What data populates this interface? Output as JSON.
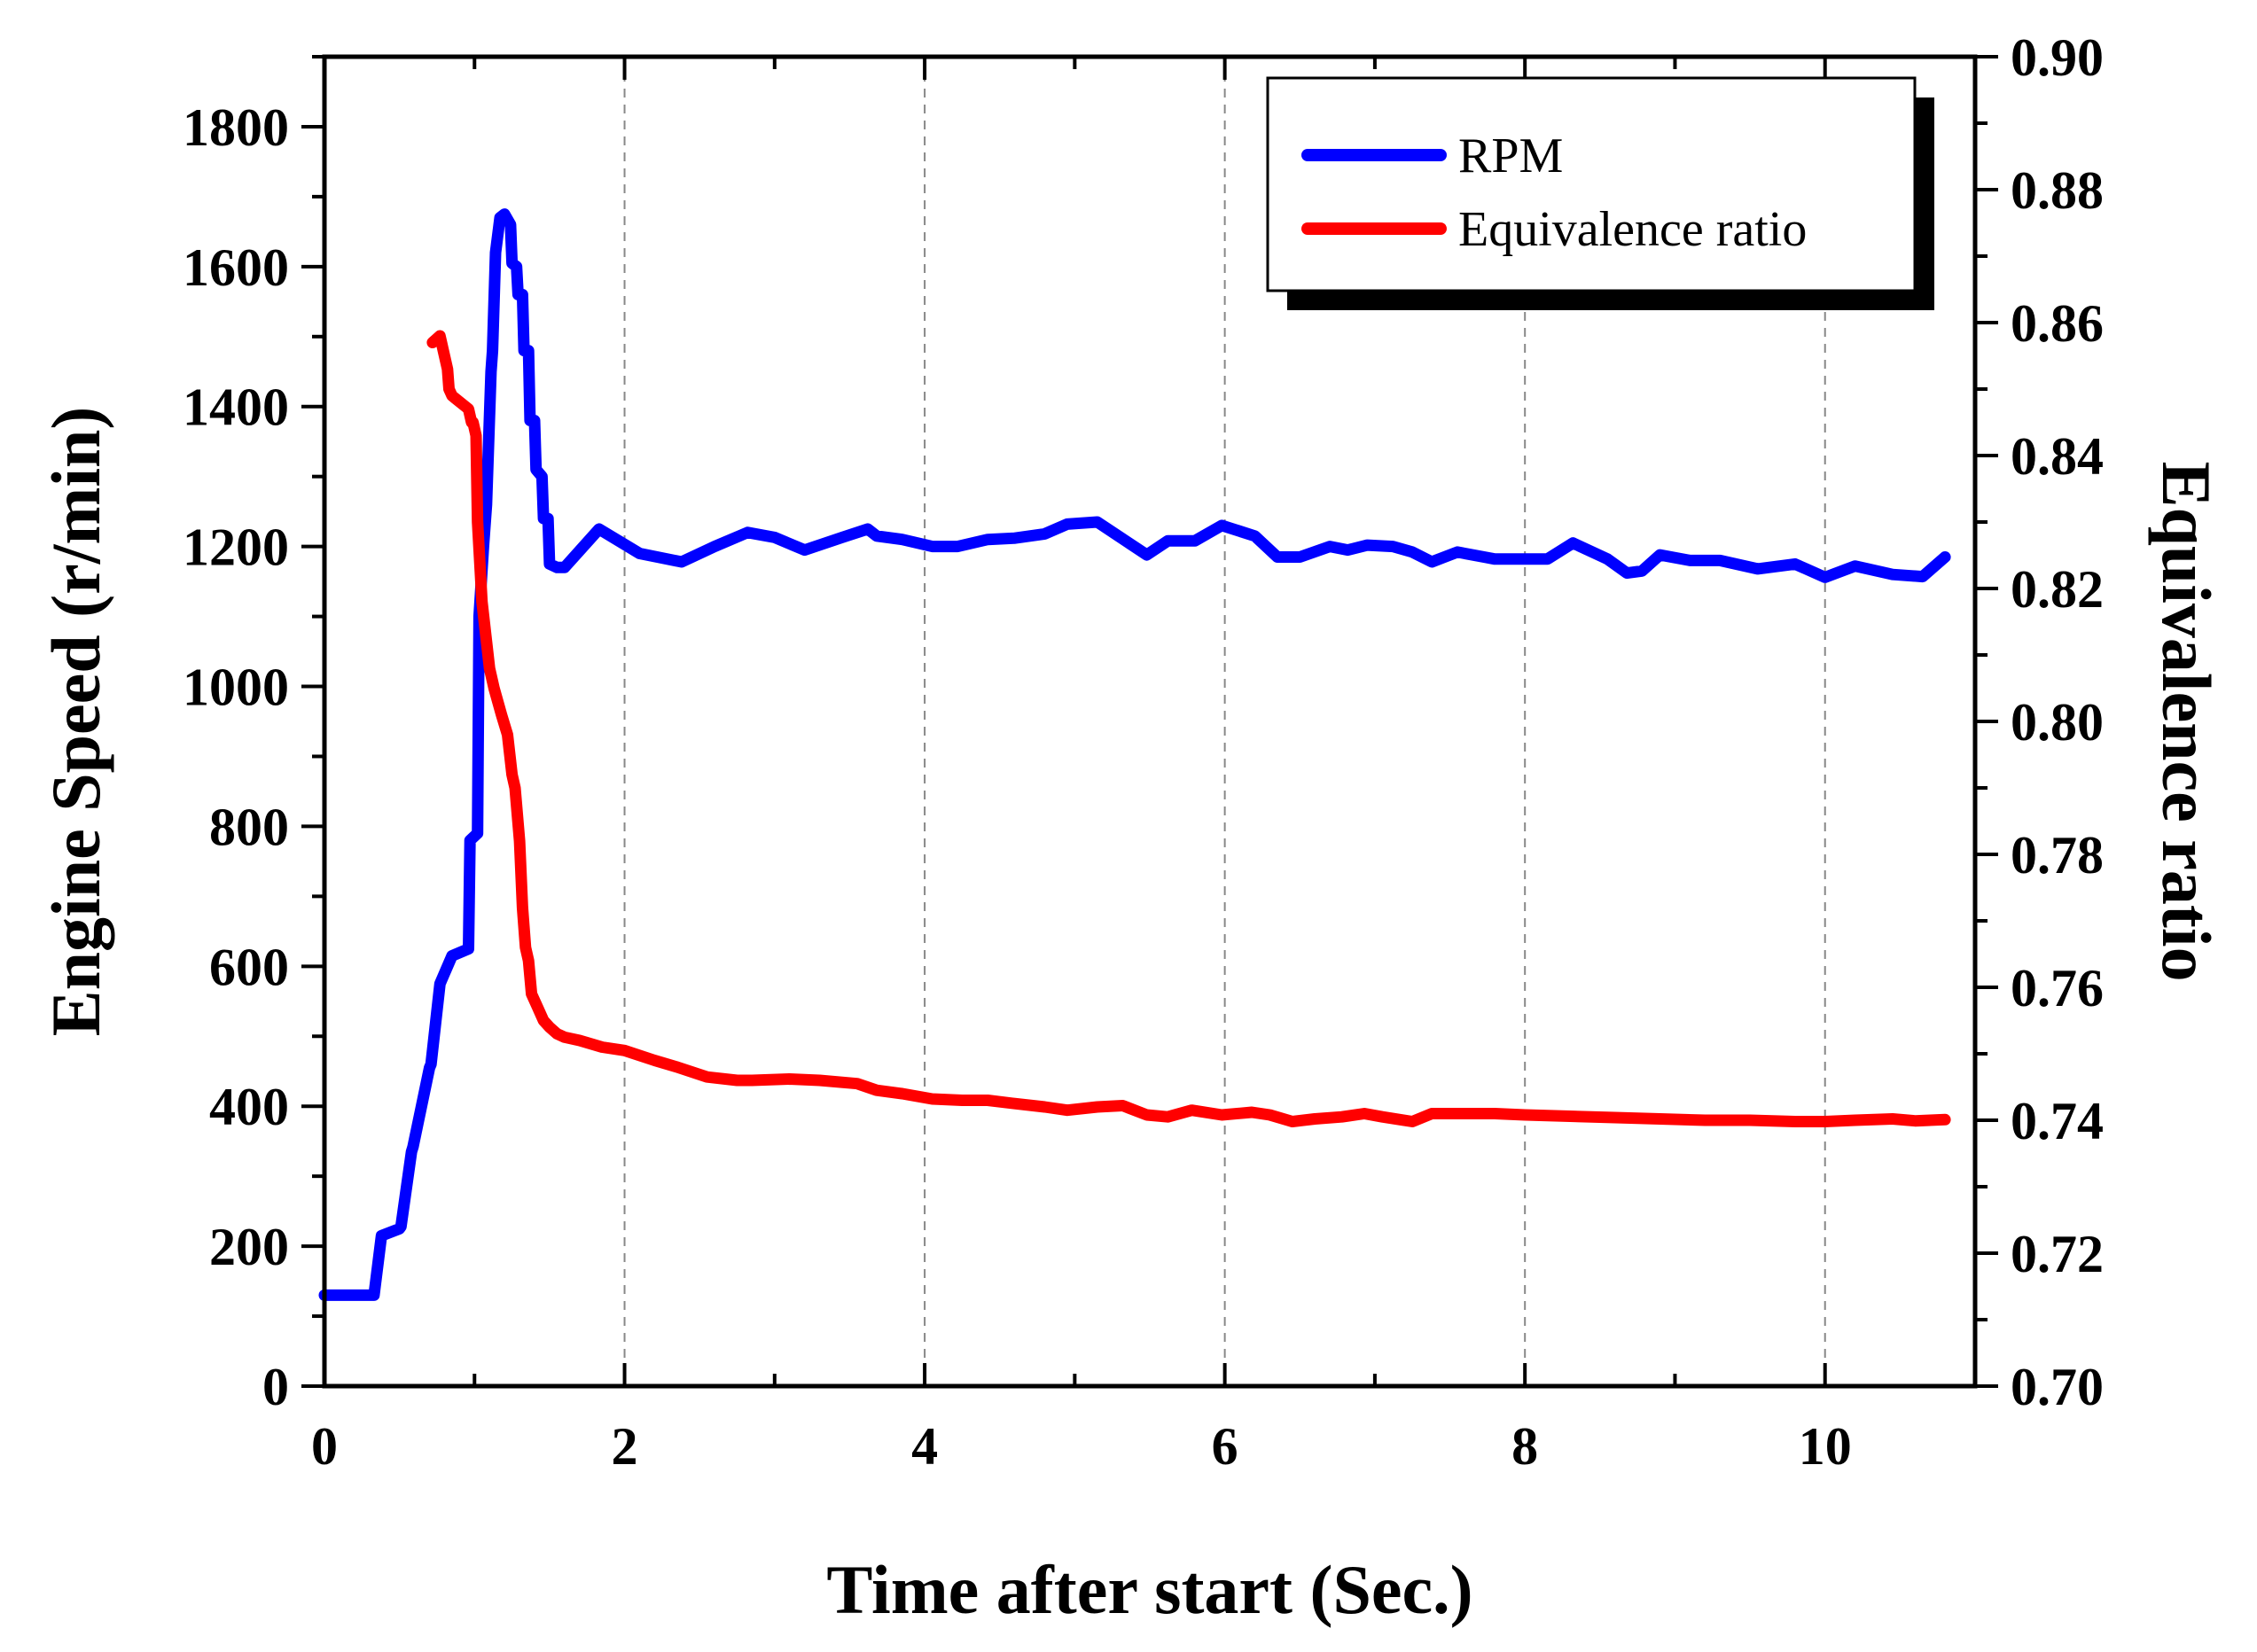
{
  "chart_data": {
    "type": "line",
    "title": "",
    "xlabel": "Time after start (Sec.)",
    "ylabel": "Engine Speed (r/min)",
    "y2label": "Equivalence ratio",
    "xlim": [
      0,
      11
    ],
    "ylim": [
      0,
      1900
    ],
    "y2lim": [
      0.7,
      0.9
    ],
    "xticks": [
      0,
      2,
      4,
      6,
      8,
      10
    ],
    "yticks": [
      0,
      200,
      400,
      600,
      800,
      1000,
      1200,
      1400,
      1600,
      1800
    ],
    "y2ticks": [
      0.7,
      0.72,
      0.74,
      0.76,
      0.78,
      0.8,
      0.82,
      0.84,
      0.86,
      0.88,
      0.9
    ],
    "grid": "vertical dashed at x major ticks",
    "legend_position": "top-right",
    "series": [
      {
        "name": "RPM",
        "axis": "left",
        "color": "#0000ff",
        "x": [
          0,
          0.31,
          0.33,
          0.38,
          0.5,
          0.51,
          0.58,
          0.59,
          0.7,
          0.71,
          0.77,
          0.78,
          0.85,
          0.96,
          0.97,
          1.02,
          1.03,
          1.06,
          1.07,
          1.08,
          1.11,
          1.12,
          1.14,
          1.17,
          1.2,
          1.24,
          1.25,
          1.28,
          1.29,
          1.32,
          1.33,
          1.36,
          1.37,
          1.4,
          1.41,
          1.45,
          1.46,
          1.49,
          1.5,
          1.55,
          1.6,
          1.83,
          2.1,
          2.38,
          2.6,
          2.82,
          3.0,
          3.2,
          3.45,
          3.62,
          3.68,
          3.85,
          4.05,
          4.22,
          4.42,
          4.6,
          4.8,
          4.95,
          5.15,
          5.48,
          5.62,
          5.8,
          5.98,
          6.2,
          6.35,
          6.5,
          6.7,
          6.82,
          6.95,
          7.12,
          7.25,
          7.38,
          7.55,
          7.8,
          8.0,
          8.15,
          8.32,
          8.55,
          8.68,
          8.78,
          8.9,
          9.1,
          9.3,
          9.55,
          9.8,
          10.0,
          10.2,
          10.45,
          10.65,
          10.8
        ],
        "values": [
          130,
          130,
          130,
          215,
          225,
          228,
          335,
          342,
          455,
          460,
          575,
          580,
          615,
          625,
          780,
          790,
          1100,
          1200,
          1230,
          1260,
          1450,
          1480,
          1620,
          1670,
          1675,
          1660,
          1605,
          1600,
          1560,
          1560,
          1480,
          1480,
          1380,
          1380,
          1310,
          1300,
          1240,
          1240,
          1175,
          1170,
          1170,
          1225,
          1190,
          1178,
          1200,
          1220,
          1213,
          1195,
          1213,
          1225,
          1215,
          1210,
          1200,
          1200,
          1210,
          1212,
          1218,
          1232,
          1235,
          1188,
          1208,
          1208,
          1230,
          1215,
          1185,
          1185,
          1200,
          1195,
          1202,
          1200,
          1192,
          1178,
          1192,
          1182,
          1182,
          1182,
          1205,
          1182,
          1162,
          1165,
          1188,
          1180,
          1180,
          1168,
          1175,
          1156,
          1172,
          1160,
          1157,
          1185
        ]
      },
      {
        "name": "Equivalence ratio",
        "axis": "right",
        "color": "#ff0000",
        "x": [
          0.72,
          0.77,
          0.8,
          0.82,
          0.83,
          0.85,
          0.96,
          0.98,
          0.99,
          1.01,
          1.02,
          1.05,
          1.08,
          1.1,
          1.13,
          1.18,
          1.22,
          1.25,
          1.27,
          1.3,
          1.32,
          1.34,
          1.36,
          1.38,
          1.4,
          1.42,
          1.46,
          1.5,
          1.55,
          1.6,
          1.7,
          1.85,
          2.0,
          2.2,
          2.35,
          2.55,
          2.75,
          2.85,
          3.1,
          3.3,
          3.55,
          3.68,
          3.85,
          4.05,
          4.25,
          4.42,
          4.6,
          4.8,
          4.95,
          5.15,
          5.32,
          5.48,
          5.62,
          5.78,
          5.98,
          6.18,
          6.3,
          6.45,
          6.6,
          6.78,
          6.93,
          7.05,
          7.25,
          7.38,
          7.55,
          7.8,
          8.0,
          8.3,
          8.6,
          8.9,
          9.2,
          9.5,
          9.8,
          10.0,
          10.2,
          10.45,
          10.6,
          10.8
        ],
        "values": [
          0.857,
          0.858,
          0.855,
          0.853,
          0.85,
          0.849,
          0.847,
          0.845,
          0.845,
          0.843,
          0.83,
          0.818,
          0.812,
          0.808,
          0.805,
          0.801,
          0.798,
          0.792,
          0.79,
          0.782,
          0.772,
          0.766,
          0.764,
          0.759,
          0.758,
          0.757,
          0.755,
          0.754,
          0.753,
          0.7525,
          0.752,
          0.751,
          0.7505,
          0.749,
          0.748,
          0.7465,
          0.746,
          0.746,
          0.7462,
          0.746,
          0.7455,
          0.7445,
          0.744,
          0.7432,
          0.743,
          0.743,
          0.7425,
          0.742,
          0.7415,
          0.742,
          0.7422,
          0.7408,
          0.7405,
          0.7415,
          0.7408,
          0.7412,
          0.7408,
          0.7398,
          0.7402,
          0.7405,
          0.741,
          0.7405,
          0.7398,
          0.741,
          0.741,
          0.741,
          0.7408,
          0.7406,
          0.7404,
          0.7402,
          0.74,
          0.74,
          0.7398,
          0.7398,
          0.74,
          0.7402,
          0.7399,
          0.7401
        ]
      }
    ]
  }
}
